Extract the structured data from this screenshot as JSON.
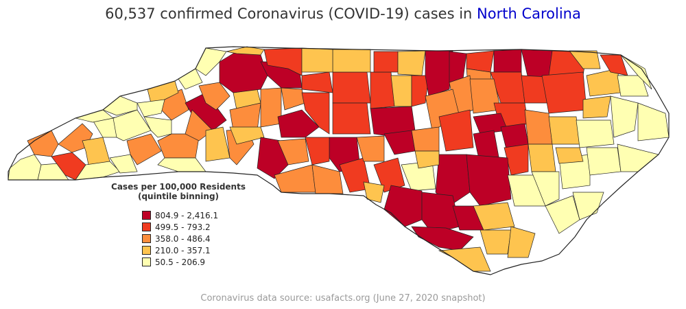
{
  "title": {
    "prefix": "60,537 confirmed Coronavirus (COVID-19) cases in ",
    "state": "North Carolina"
  },
  "legend": {
    "title_line1": "Cases per 100,000 Residents",
    "title_line2": "(quintile binning)",
    "bins": [
      {
        "label": "804.9 - 2,416.1",
        "color": "#bd0026"
      },
      {
        "label": "499.5 - 793.2",
        "color": "#f03b20"
      },
      {
        "label": "358.0 - 486.4",
        "color": "#fd8d3c"
      },
      {
        "label": "210.0 - 357.1",
        "color": "#fec44f"
      },
      {
        "label": "50.5 - 206.9",
        "color": "#ffffb2"
      }
    ]
  },
  "source": "Coronavirus data source: usafacts.org (June 27, 2020 snapshot)",
  "colors": {
    "title_text": "#333333",
    "state_link": "#0000cc",
    "county_border": "#222222",
    "source_text": "#9a9a9a"
  }
}
